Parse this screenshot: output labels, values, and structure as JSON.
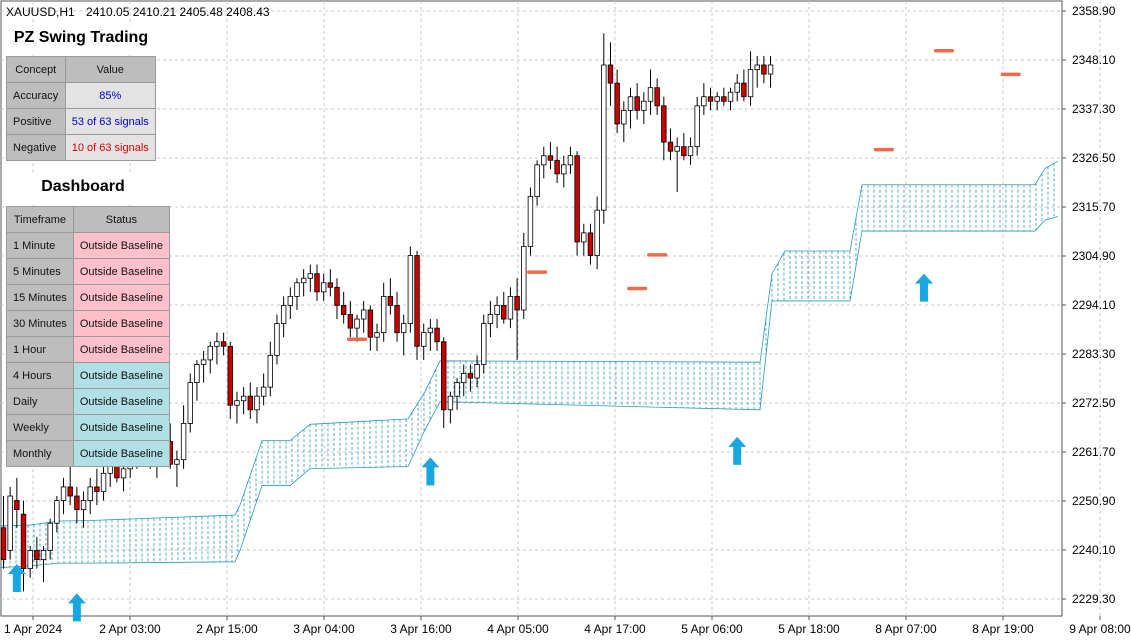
{
  "header": {
    "symbol": "XAUUSD,H1",
    "ohlc": "2410.05 2410.21 2405.48 2408.43"
  },
  "swing_panel": {
    "title": "PZ Swing Trading",
    "col_concept": "Concept",
    "col_value": "Value",
    "rows": [
      {
        "concept": "Accuracy",
        "value": "85%",
        "color": "#0000cc"
      },
      {
        "concept": "Positive",
        "value": "53 of 63 signals",
        "color": "#0000cc"
      },
      {
        "concept": "Negative",
        "value": "10 of 63 signals",
        "color": "#dd0000"
      }
    ]
  },
  "dashboard": {
    "title": "Dashboard",
    "col_timeframe": "Timeframe",
    "col_status": "Status",
    "rows": [
      {
        "timeframe": "1 Minute",
        "status": "Outside Baseline",
        "tone": "red"
      },
      {
        "timeframe": "5 Minutes",
        "status": "Outside Baseline",
        "tone": "red"
      },
      {
        "timeframe": "15 Minutes",
        "status": "Outside Baseline",
        "tone": "red"
      },
      {
        "timeframe": "30 Minutes",
        "status": "Outside Baseline",
        "tone": "red"
      },
      {
        "timeframe": "1 Hour",
        "status": "Outside Baseline",
        "tone": "red"
      },
      {
        "timeframe": "4 Hours",
        "status": "Outside Baseline",
        "tone": "blue"
      },
      {
        "timeframe": "Daily",
        "status": "Outside Baseline",
        "tone": "blue"
      },
      {
        "timeframe": "Weekly",
        "status": "Outside Baseline",
        "tone": "blue"
      },
      {
        "timeframe": "Monthly",
        "status": "Outside Baseline",
        "tone": "blue"
      }
    ]
  },
  "colors": {
    "bull": "#ffffff",
    "bear": "#cc0000",
    "wick": "#000000",
    "band": "#2a9bb5",
    "buy_arrow": "#1aa7e0",
    "sell_marker": "#f06a4a",
    "grid": "#c8c8c8"
  },
  "chart_data": {
    "type": "candlestick",
    "y_ticks": [
      "2358.90",
      "2348.10",
      "2337.30",
      "2326.50",
      "2315.70",
      "2304.90",
      "2294.10",
      "2283.30",
      "2272.50",
      "2261.70",
      "2250.90",
      "2240.10",
      "2229.30"
    ],
    "ylim": [
      2226.0,
      2362.0
    ],
    "x_ticks": [
      "1 Apr 2024",
      "2 Apr 03:00",
      "2 Apr 15:00",
      "3 Apr 04:00",
      "3 Apr 16:00",
      "4 Apr 05:00",
      "4 Apr 17:00",
      "5 Apr 06:00",
      "5 Apr 18:00",
      "8 Apr 07:00",
      "8 Apr 19:00",
      "9 Apr 08:00"
    ],
    "band_points": [
      [
        0,
        2245.4,
        2236.2
      ],
      [
        30,
        2245.6,
        2236.6
      ],
      [
        60,
        2246.5,
        2237.2
      ],
      [
        90,
        2246.6,
        2237.2
      ],
      [
        235,
        2247.8,
        2237.5
      ],
      [
        240,
        2250,
        2240
      ],
      [
        262,
        2264.2,
        2254.3
      ],
      [
        290,
        2264.2,
        2254.3
      ],
      [
        310,
        2267.8,
        2258
      ],
      [
        408,
        2269,
        2258.5
      ],
      [
        425,
        2275,
        2266.6
      ],
      [
        440,
        2281.8,
        2272.8
      ],
      [
        760,
        2281.5,
        2271
      ],
      [
        772,
        2301,
        2295
      ],
      [
        785,
        2306,
        2295
      ],
      [
        850,
        2306,
        2295
      ],
      [
        862,
        2320.6,
        2310.4
      ],
      [
        1035,
        2320.6,
        2310.4
      ],
      [
        1045,
        2324.2,
        2312.8
      ],
      [
        1058,
        2325.8,
        2313.6
      ]
    ],
    "candles": [
      [
        2245.0,
        2252.0,
        2236.0,
        2238.0
      ],
      [
        2240.0,
        2254.0,
        2238.0,
        2252.0
      ],
      [
        2251.0,
        2256.0,
        2245.0,
        2249.0
      ],
      [
        2248.0,
        2251.0,
        2231.0,
        2236.0
      ],
      [
        2236.0,
        2241.0,
        2234.0,
        2240.0
      ],
      [
        2240.0,
        2243.0,
        2236.0,
        2238.0
      ],
      [
        2238.0,
        2241.0,
        2233.0,
        2240.0
      ],
      [
        2240.0,
        2247.0,
        2238.0,
        2246.0
      ],
      [
        2246.0,
        2252.0,
        2244.0,
        2251.0
      ],
      [
        2251.0,
        2256.0,
        2248.0,
        2254.0
      ],
      [
        2254.0,
        2259.0,
        2250.0,
        2252.0
      ],
      [
        2252.0,
        2254.0,
        2246.0,
        2249.0
      ],
      [
        2249.0,
        2253.0,
        2245.0,
        2251.0
      ],
      [
        2251.0,
        2256.0,
        2248.0,
        2254.0
      ],
      [
        2254.0,
        2258.0,
        2250.0,
        2253.0
      ],
      [
        2253.0,
        2259.0,
        2251.0,
        2257.0
      ],
      [
        2257.0,
        2262.0,
        2254.0,
        2259.0
      ],
      [
        2259.0,
        2264.0,
        2255.0,
        2256.0
      ],
      [
        2256.0,
        2259.0,
        2253.0,
        2258.0
      ],
      [
        2258.0,
        2263.0,
        2256.0,
        2261.0
      ],
      [
        2261.0,
        2265.0,
        2258.0,
        2262.0
      ],
      [
        2262.0,
        2266.0,
        2259.0,
        2263.0
      ],
      [
        2263.0,
        2267.0,
        2258.0,
        2260.0
      ],
      [
        2260.0,
        2263.0,
        2256.0,
        2262.0
      ],
      [
        2262.0,
        2266.0,
        2259.0,
        2264.0
      ],
      [
        2264.0,
        2268.0,
        2258.0,
        2259.0
      ],
      [
        2259.0,
        2262.0,
        2254.0,
        2260.0
      ],
      [
        2260.0,
        2272.0,
        2258.0,
        2268.0
      ],
      [
        2268.0,
        2279.0,
        2266.0,
        2277.0
      ],
      [
        2277.0,
        2282.0,
        2273.0,
        2281.0
      ],
      [
        2281.0,
        2284.0,
        2277.0,
        2282.0
      ],
      [
        2282.0,
        2286.0,
        2279.0,
        2285.0
      ],
      [
        2285.0,
        2288.0,
        2281.0,
        2286.0
      ],
      [
        2286.0,
        2288.0,
        2283.0,
        2285.0
      ],
      [
        2285.0,
        2286.0,
        2269.0,
        2272.0
      ],
      [
        2272.0,
        2275.0,
        2268.0,
        2273.0
      ],
      [
        2273.0,
        2276.0,
        2270.0,
        2274.0
      ],
      [
        2274.0,
        2277.0,
        2269.0,
        2271.0
      ],
      [
        2271.0,
        2276.0,
        2268.0,
        2274.0
      ],
      [
        2274.0,
        2279.0,
        2272.0,
        2276.0
      ],
      [
        2276.0,
        2286.0,
        2274.0,
        2283.0
      ],
      [
        2283.0,
        2292.0,
        2281.0,
        2290.0
      ],
      [
        2290.0,
        2296.0,
        2287.0,
        2294.0
      ],
      [
        2294.0,
        2298.0,
        2291.0,
        2296.0
      ],
      [
        2296.0,
        2300.0,
        2293.0,
        2299.0
      ],
      [
        2299.0,
        2302.0,
        2296.0,
        2300.0
      ],
      [
        2300.0,
        2303.0,
        2297.0,
        2301.0
      ],
      [
        2301.0,
        2303.0,
        2295.0,
        2297.0
      ],
      [
        2297.0,
        2301.0,
        2295.0,
        2299.0
      ],
      [
        2299.0,
        2302.0,
        2296.0,
        2298.0
      ],
      [
        2298.0,
        2300.0,
        2291.0,
        2294.0
      ],
      [
        2294.0,
        2297.0,
        2290.0,
        2292.0
      ],
      [
        2292.0,
        2295.0,
        2287.0,
        2289.0
      ],
      [
        2289.0,
        2292.0,
        2286.0,
        2291.0
      ],
      [
        2291.0,
        2295.0,
        2288.0,
        2293.0
      ],
      [
        2293.0,
        2294.0,
        2284.0,
        2287.0
      ],
      [
        2287.0,
        2290.0,
        2284.0,
        2288.0
      ],
      [
        2288.0,
        2299.0,
        2286.0,
        2296.0
      ],
      [
        2296.0,
        2300.0,
        2292.0,
        2294.0
      ],
      [
        2294.0,
        2297.0,
        2286.0,
        2288.0
      ],
      [
        2288.0,
        2292.0,
        2283.0,
        2290.0
      ],
      [
        2290.0,
        2307.0,
        2288.0,
        2305.0
      ],
      [
        2305.0,
        2306.0,
        2282.0,
        2285.0
      ],
      [
        2285.0,
        2290.0,
        2282.0,
        2288.0
      ],
      [
        2288.0,
        2291.0,
        2284.0,
        2289.0
      ],
      [
        2289.0,
        2291.0,
        2284.0,
        2286.0
      ],
      [
        2286.0,
        2287.0,
        2267.0,
        2271.0
      ],
      [
        2271.0,
        2275.0,
        2268.0,
        2274.0
      ],
      [
        2274.0,
        2278.0,
        2271.0,
        2277.0
      ],
      [
        2277.0,
        2281.0,
        2274.0,
        2279.0
      ],
      [
        2279.0,
        2281.0,
        2275.0,
        2278.0
      ],
      [
        2278.0,
        2283.0,
        2276.0,
        2281.0
      ],
      [
        2281.0,
        2292.0,
        2279.0,
        2290.0
      ],
      [
        2290.0,
        2295.0,
        2287.0,
        2292.0
      ],
      [
        2292.0,
        2296.0,
        2289.0,
        2294.0
      ],
      [
        2294.0,
        2297.0,
        2290.0,
        2291.0
      ],
      [
        2291.0,
        2298.0,
        2289.0,
        2296.0
      ],
      [
        2296.0,
        2300.0,
        2282.0,
        2293.0
      ],
      [
        2293.0,
        2310.0,
        2291.0,
        2307.0
      ],
      [
        2307.0,
        2320.0,
        2305.0,
        2318.0
      ],
      [
        2318.0,
        2326.0,
        2316.0,
        2325.0
      ],
      [
        2325.0,
        2329.0,
        2322.0,
        2327.0
      ],
      [
        2327.0,
        2330.0,
        2324.0,
        2326.0
      ],
      [
        2326.0,
        2329.0,
        2321.0,
        2323.0
      ],
      [
        2323.0,
        2327.0,
        2320.0,
        2325.0
      ],
      [
        2325.0,
        2329.0,
        2323.0,
        2327.0
      ],
      [
        2327.0,
        2328.0,
        2305.0,
        2308.0
      ],
      [
        2308.0,
        2312.0,
        2305.0,
        2310.0
      ],
      [
        2310.0,
        2312.0,
        2303.0,
        2305.0
      ],
      [
        2305.0,
        2318.0,
        2302.0,
        2315.0
      ],
      [
        2315.0,
        2354.0,
        2312.0,
        2347.0
      ],
      [
        2347.0,
        2352.0,
        2338.0,
        2343.0
      ],
      [
        2343.0,
        2346.0,
        2332.0,
        2334.0
      ],
      [
        2334.0,
        2339.0,
        2330.0,
        2337.0
      ],
      [
        2337.0,
        2342.0,
        2333.0,
        2340.0
      ],
      [
        2340.0,
        2343.0,
        2335.0,
        2337.0
      ],
      [
        2337.0,
        2341.0,
        2334.0,
        2339.0
      ],
      [
        2339.0,
        2346.0,
        2336.0,
        2342.0
      ],
      [
        2342.0,
        2344.0,
        2336.0,
        2338.0
      ],
      [
        2338.0,
        2340.0,
        2326.0,
        2330.0
      ],
      [
        2330.0,
        2333.0,
        2326.0,
        2328.0
      ],
      [
        2328.0,
        2331.0,
        2319.0,
        2329.0
      ],
      [
        2329.0,
        2332.0,
        2326.0,
        2327.0
      ],
      [
        2327.0,
        2331.0,
        2325.0,
        2329.0
      ],
      [
        2329.0,
        2340.0,
        2327.0,
        2338.0
      ],
      [
        2338.0,
        2343.0,
        2336.0,
        2340.0
      ],
      [
        2340.0,
        2342.0,
        2337.0,
        2339.0
      ],
      [
        2339.0,
        2341.0,
        2337.0,
        2340.0
      ],
      [
        2340.0,
        2342.0,
        2338.0,
        2339.0
      ],
      [
        2339.0,
        2342.0,
        2337.0,
        2341.0
      ],
      [
        2341.0,
        2345.0,
        2339.0,
        2343.0
      ],
      [
        2343.0,
        2346.0,
        2339.0,
        2340.0
      ],
      [
        2340.0,
        2350.0,
        2338.0,
        2346.0
      ],
      [
        2346.0,
        2349.0,
        2342.0,
        2347.0
      ],
      [
        2347.0,
        2349.0,
        2343.0,
        2345.0
      ],
      [
        2345.0,
        2349.0,
        2342.0,
        2347.0
      ]
    ],
    "buy_arrows": [
      [
        2,
        2233.5
      ],
      [
        11,
        2227.0
      ],
      [
        64,
        2257.0
      ],
      [
        110,
        2261.5
      ],
      [
        138,
        2297.5
      ]
    ],
    "sell_markers": [
      [
        53,
        2286.6
      ],
      [
        80,
        2301.4
      ],
      [
        95,
        2297.8
      ],
      [
        98,
        2305.2
      ],
      [
        132,
        2328.4
      ],
      [
        141,
        2350.2
      ],
      [
        151,
        2345.0
      ]
    ]
  }
}
